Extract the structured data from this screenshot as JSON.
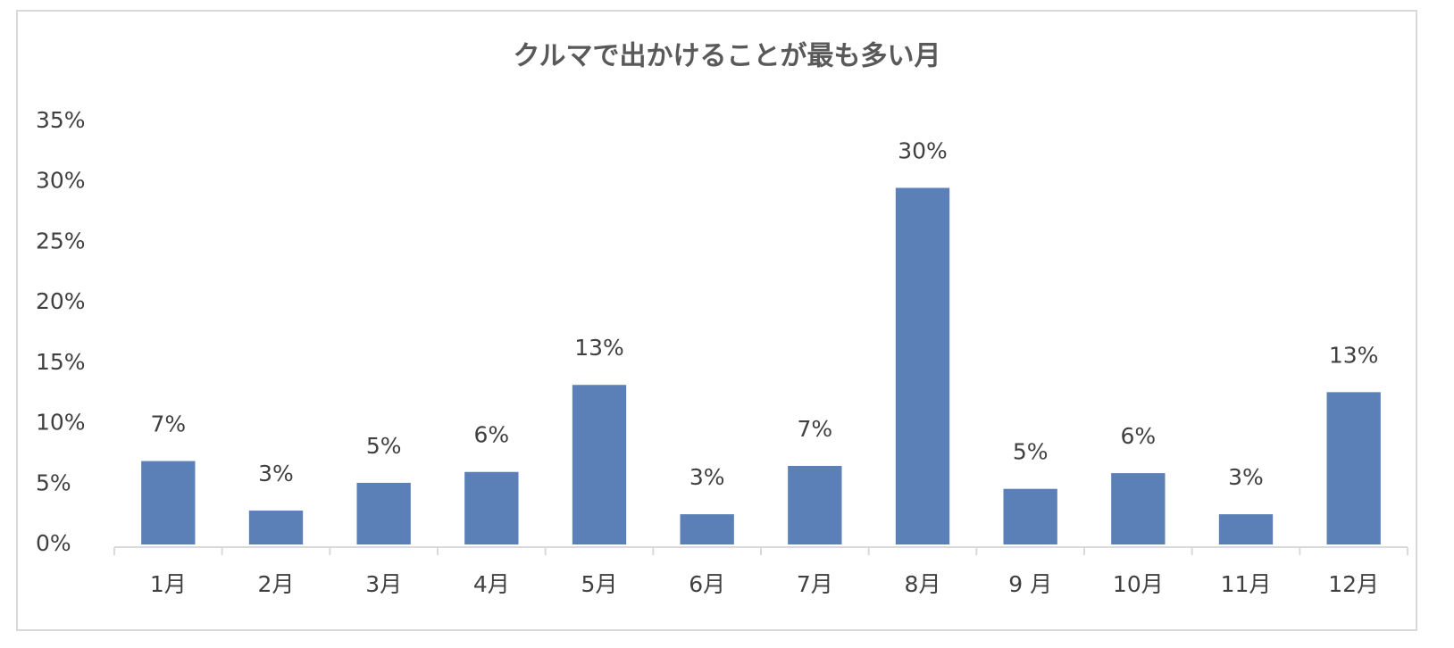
{
  "chart_data": {
    "type": "bar",
    "title": "クルマで出かけることが最も多い月",
    "categories": [
      "1月",
      "2月",
      "3月",
      "4月",
      "5月",
      "6月",
      "7月",
      "8月",
      "9 月",
      "10月",
      "11月",
      "12月"
    ],
    "values": [
      6.9,
      2.8,
      5.1,
      6,
      13.2,
      2.5,
      6.5,
      29.5,
      4.6,
      5.9,
      2.5,
      12.6
    ],
    "value_labels": [
      "7%",
      "3%",
      "5%",
      "6%",
      "13%",
      "3%",
      "7%",
      "30%",
      "5%",
      "6%",
      "3%",
      "13%"
    ],
    "color": "#5b80b8",
    "ylim": [
      0,
      35
    ],
    "yticks": [
      {
        "value": 0,
        "label": "0%"
      },
      {
        "value": 5,
        "label": "5%"
      },
      {
        "value": 10,
        "label": "10%"
      },
      {
        "value": 15,
        "label": "15%"
      },
      {
        "value": 20,
        "label": "20%"
      },
      {
        "value": 25,
        "label": "25%"
      },
      {
        "value": 30,
        "label": "30%"
      },
      {
        "value": 35,
        "label": "35%"
      }
    ],
    "grid": false
  }
}
